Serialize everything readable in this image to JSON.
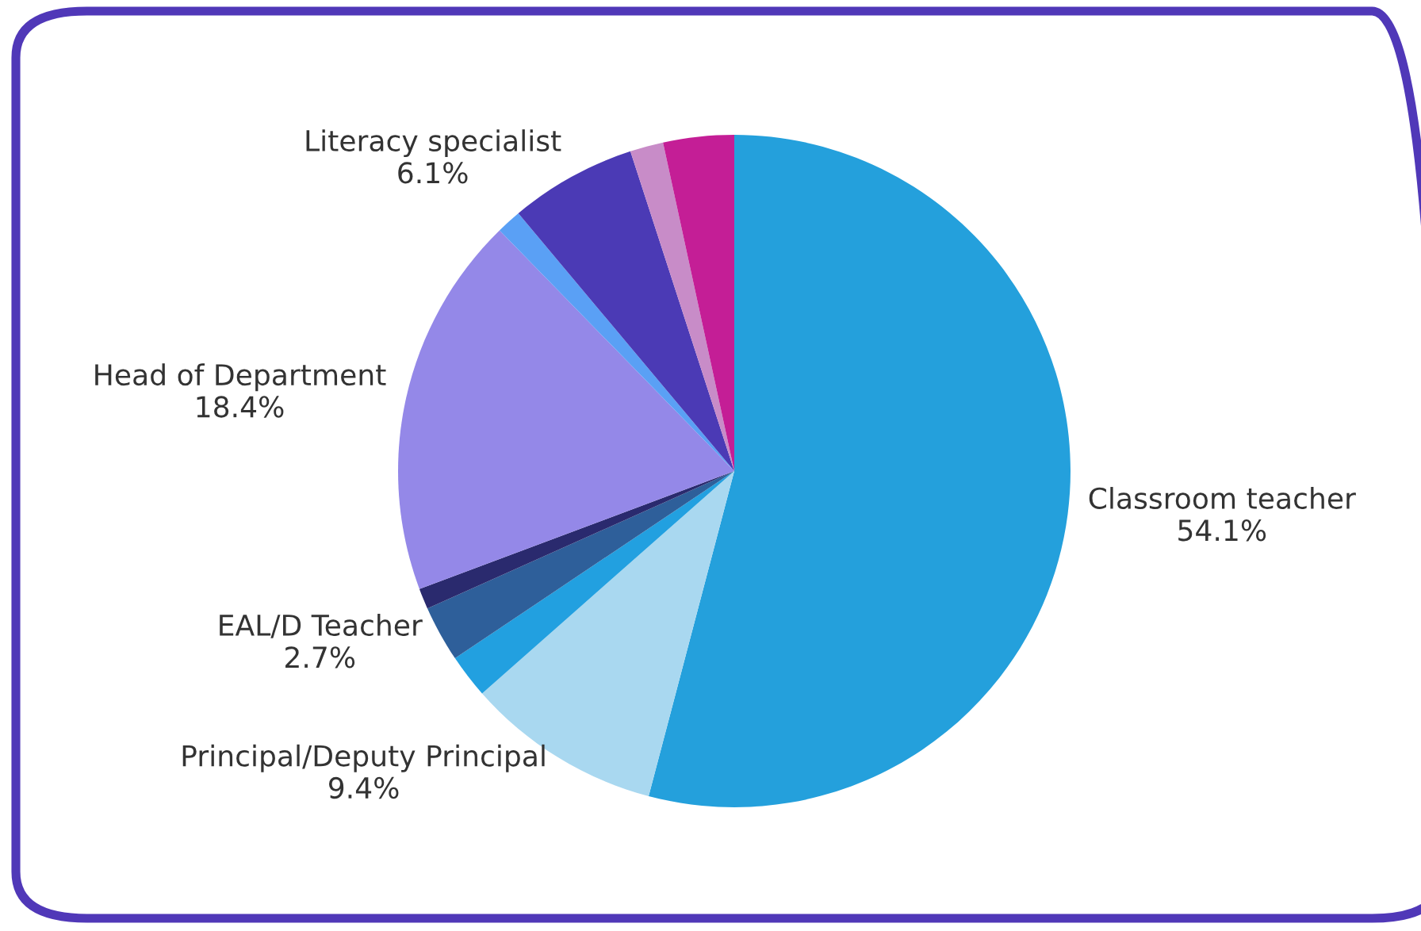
{
  "chart_data": {
    "type": "pie",
    "categories": [
      "Classroom teacher",
      "Principal/Deputy Principal",
      null,
      "EAL/D Teacher",
      null,
      "Head of Department",
      null,
      "Literacy specialist",
      null,
      null
    ],
    "values": [
      54.1,
      9.4,
      2.1,
      2.7,
      1.0,
      18.4,
      1.2,
      6.1,
      1.6,
      3.4
    ],
    "value_labels": [
      "54.1%",
      "9.4%",
      null,
      "2.7%",
      null,
      "18.4%",
      null,
      "6.1%",
      null,
      null
    ],
    "colors": [
      "#24a0dc",
      "#a9d8f0",
      "#22a0e0",
      "#2e5f9a",
      "#2a2a6e",
      "#9488e8",
      "#5aa0f5",
      "#4b3ab5",
      "#c88cc8",
      "#c41e96"
    ],
    "legend": false
  }
}
